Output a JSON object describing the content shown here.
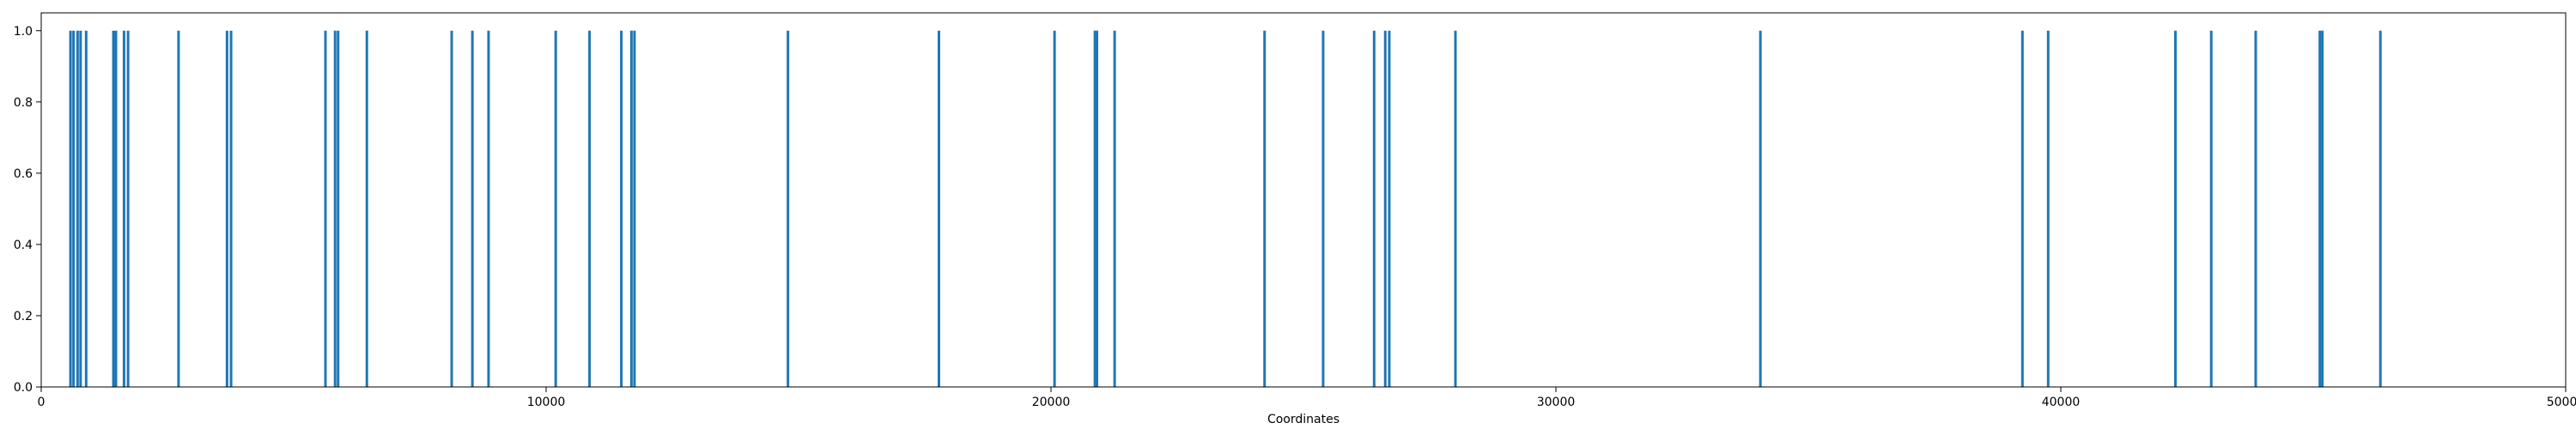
{
  "chart_data": {
    "type": "bar",
    "title": "",
    "xlabel": "Coordinates",
    "ylabel": "",
    "xlim": [
      0,
      50000
    ],
    "ylim": [
      0,
      1.05
    ],
    "x_ticks": [
      0,
      10000,
      20000,
      30000,
      40000,
      50000
    ],
    "x_tick_labels": [
      "0",
      "10000",
      "20000",
      "30000",
      "40000",
      "50000"
    ],
    "y_ticks": [
      0.0,
      0.2,
      0.4,
      0.6,
      0.8,
      1.0
    ],
    "y_tick_labels": [
      "0.0",
      "0.2",
      "0.4",
      "0.6",
      "0.8",
      "1.0"
    ],
    "grid": false,
    "bar_color": "#1f77b4",
    "series": [
      {
        "values": [
          {
            "x": 580,
            "y": 1
          },
          {
            "x": 640,
            "y": 1
          },
          {
            "x": 720,
            "y": 1
          },
          {
            "x": 780,
            "y": 1
          },
          {
            "x": 890,
            "y": 1
          },
          {
            "x": 1430,
            "y": 1
          },
          {
            "x": 1480,
            "y": 1
          },
          {
            "x": 1640,
            "y": 1
          },
          {
            "x": 1720,
            "y": 1
          },
          {
            "x": 2720,
            "y": 1
          },
          {
            "x": 3680,
            "y": 1
          },
          {
            "x": 3760,
            "y": 1
          },
          {
            "x": 5630,
            "y": 1
          },
          {
            "x": 5820,
            "y": 1
          },
          {
            "x": 5880,
            "y": 1
          },
          {
            "x": 6450,
            "y": 1
          },
          {
            "x": 8130,
            "y": 1
          },
          {
            "x": 8540,
            "y": 1
          },
          {
            "x": 8860,
            "y": 1
          },
          {
            "x": 10190,
            "y": 1
          },
          {
            "x": 10860,
            "y": 1
          },
          {
            "x": 11490,
            "y": 1
          },
          {
            "x": 11690,
            "y": 1
          },
          {
            "x": 11750,
            "y": 1
          },
          {
            "x": 14790,
            "y": 1
          },
          {
            "x": 17780,
            "y": 1
          },
          {
            "x": 20070,
            "y": 1
          },
          {
            "x": 20870,
            "y": 1
          },
          {
            "x": 20910,
            "y": 1
          },
          {
            "x": 21260,
            "y": 1
          },
          {
            "x": 24230,
            "y": 1
          },
          {
            "x": 25390,
            "y": 1
          },
          {
            "x": 26400,
            "y": 1
          },
          {
            "x": 26620,
            "y": 1
          },
          {
            "x": 26700,
            "y": 1
          },
          {
            "x": 28010,
            "y": 1
          },
          {
            "x": 34050,
            "y": 1
          },
          {
            "x": 39240,
            "y": 1
          },
          {
            "x": 39750,
            "y": 1
          },
          {
            "x": 42270,
            "y": 1
          },
          {
            "x": 42980,
            "y": 1
          },
          {
            "x": 43860,
            "y": 1
          },
          {
            "x": 45130,
            "y": 1
          },
          {
            "x": 45180,
            "y": 1
          },
          {
            "x": 46330,
            "y": 1
          }
        ]
      }
    ]
  }
}
